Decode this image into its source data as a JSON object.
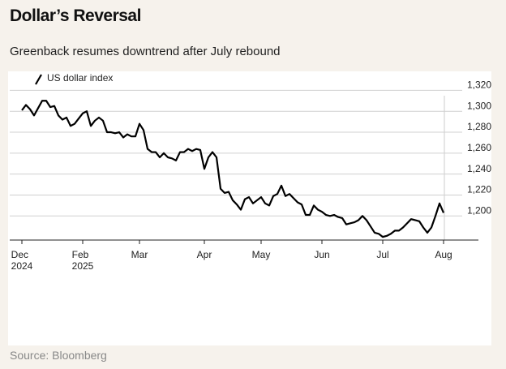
{
  "title": "Dollar’s Reversal",
  "subtitle": "Greenback resumes downtrend after July rebound",
  "source": "Source: Bloomberg",
  "chart_data": {
    "type": "line",
    "categories": [
      "Dec\n2024",
      null,
      null,
      null,
      null,
      null,
      null,
      null,
      null,
      null,
      null,
      null,
      null,
      null,
      null,
      "Feb\n2025",
      null,
      null,
      null,
      null,
      null,
      null,
      null,
      null,
      null,
      null,
      null,
      null,
      null,
      "Mar",
      null,
      null,
      null,
      null,
      null,
      null,
      null,
      null,
      null,
      null,
      null,
      null,
      null,
      null,
      null,
      "Apr",
      null,
      null,
      null,
      null,
      null,
      null,
      null,
      null,
      null,
      null,
      null,
      null,
      null,
      "May",
      null,
      null,
      null,
      null,
      null,
      null,
      null,
      null,
      null,
      null,
      null,
      null,
      null,
      null,
      "Jun",
      null,
      null,
      null,
      null,
      null,
      null,
      null,
      null,
      null,
      null,
      null,
      null,
      null,
      null,
      "Jul",
      null,
      null,
      null,
      null,
      null,
      null,
      null,
      null,
      null,
      null,
      null,
      null,
      null,
      null,
      "Aug"
    ],
    "series": [
      {
        "name": "US dollar index",
        "color": "#000000",
        "values": [
          1301,
          1306,
          1302,
          1296,
          1303,
          1310,
          1310,
          1304,
          1305,
          1296,
          1292,
          1294,
          1286,
          1288,
          1293,
          1298,
          1300,
          1286,
          1291,
          1294,
          1291,
          1280,
          1280,
          1279,
          1280,
          1275,
          1278,
          1276,
          1276,
          1288,
          1282,
          1264,
          1261,
          1261,
          1256,
          1260,
          1256,
          1255,
          1253,
          1261,
          1261,
          1264,
          1262,
          1264,
          1263,
          1245,
          1256,
          1261,
          1256,
          1226,
          1222,
          1223,
          1215,
          1211,
          1206,
          1216,
          1218,
          1212,
          1215,
          1218,
          1212,
          1210,
          1219,
          1221,
          1229,
          1219,
          1221,
          1217,
          1213,
          1211,
          1201,
          1201,
          1210,
          1206,
          1204,
          1201,
          1200,
          1201,
          1199,
          1198,
          1192,
          1193,
          1194,
          1196,
          1200,
          1196,
          1190,
          1184,
          1183,
          1180,
          1181,
          1183,
          1186,
          1186,
          1189,
          1193,
          1197,
          1196,
          1195,
          1189,
          1184,
          1189,
          1200,
          1212,
          1203
        ]
      }
    ],
    "ylim": [
      1177,
      1335
    ],
    "yticks": [
      {
        "value": 1200,
        "label": "1,200"
      },
      {
        "value": 1220,
        "label": "1,220"
      },
      {
        "value": 1240,
        "label": "1,240"
      },
      {
        "value": 1260,
        "label": "1,260"
      },
      {
        "value": 1280,
        "label": "1,280"
      },
      {
        "value": 1300,
        "label": "1,300"
      },
      {
        "value": 1320,
        "label": "1,320"
      }
    ],
    "grid": true
  }
}
